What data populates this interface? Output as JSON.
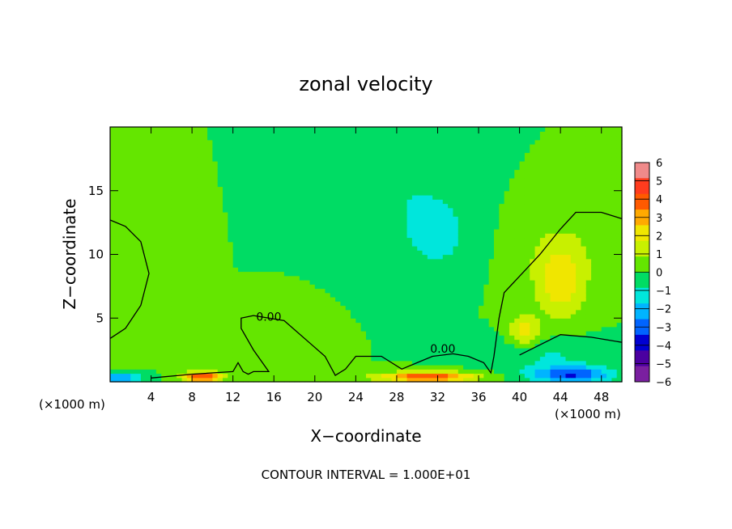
{
  "chart_data": {
    "type": "heatmap",
    "title": "zonal velocity",
    "xlabel": "X−coordinate",
    "ylabel": "Z−coordinate",
    "x_unit_left": "(×1000 m)",
    "x_unit_right": "(×1000 m)",
    "xlim": [
      0,
      50
    ],
    "ylim": [
      0,
      20
    ],
    "x_ticks": [
      4,
      8,
      12,
      16,
      20,
      24,
      28,
      32,
      36,
      40,
      44,
      48
    ],
    "y_ticks": [
      5,
      10,
      15
    ],
    "contour_label": "0.00",
    "footer": "CONTOUR INTERVAL = 1.000E+01",
    "colorbar": {
      "levels": [
        6,
        5,
        4,
        3,
        2,
        1,
        0,
        -1,
        -2,
        -3,
        -4,
        -5,
        -6
      ],
      "labels": [
        "6",
        "5",
        "4",
        "3",
        "2",
        "1",
        "0",
        "−1",
        "−2",
        "−3",
        "−4",
        "−5",
        "−6"
      ],
      "colors": [
        "#f08a8a",
        "#ff3c1e",
        "#ff5a00",
        "#ffaa00",
        "#f0e600",
        "#c8f000",
        "#64e600",
        "#00dc64",
        "#00e6dc",
        "#00b4ff",
        "#0064ff",
        "#0000d2",
        "#4b00a0",
        "#7a1fa0"
      ]
    },
    "background_level": -0.5,
    "features": [
      {
        "kind": "blob",
        "x": 1.5,
        "z": 8.5,
        "rx": 3.5,
        "rz": 4.5,
        "value": 0.4
      },
      {
        "kind": "blob",
        "x": 32,
        "z": 11.5,
        "rx": 4,
        "rz": 3.5,
        "value": -1.9
      },
      {
        "kind": "blob",
        "x": 29,
        "z": 15,
        "rx": 6,
        "rz": 5,
        "value": -1.3
      },
      {
        "kind": "blob",
        "x": 44,
        "z": 7.5,
        "rx": 3,
        "rz": 3.5,
        "value": 1.7
      },
      {
        "kind": "blob",
        "x": 40.5,
        "z": 4,
        "rx": 1.8,
        "rz": 1.5,
        "value": 2.1
      },
      {
        "kind": "blob",
        "x": 44,
        "z": 10,
        "rx": 5,
        "rz": 4,
        "value": 0.6
      },
      {
        "kind": "blob",
        "x": 18,
        "z": 2.5,
        "rx": 3,
        "rz": 2.5,
        "value": 0.5
      },
      {
        "kind": "blob",
        "x": 9,
        "z": 0.4,
        "rx": 2.5,
        "rz": 0.5,
        "value": 4.5
      },
      {
        "kind": "blob",
        "x": 31,
        "z": 0.4,
        "rx": 6,
        "rz": 0.5,
        "value": 4.5
      },
      {
        "kind": "blob",
        "x": 45,
        "z": 0.6,
        "rx": 5,
        "rz": 0.8,
        "value": -4.5
      },
      {
        "kind": "blob",
        "x": 43,
        "z": 2.2,
        "rx": 7,
        "rz": 1.6,
        "value": -1.6
      },
      {
        "kind": "blob",
        "x": 1,
        "z": 0.3,
        "rx": 2.5,
        "rz": 0.4,
        "value": -4
      }
    ],
    "zero_contours": [
      [
        [
          0,
          12.7
        ],
        [
          1.5,
          12.2
        ],
        [
          3,
          11
        ],
        [
          3.8,
          8.5
        ],
        [
          3,
          6
        ],
        [
          1.5,
          4.2
        ],
        [
          0,
          3.4
        ]
      ],
      [
        [
          4,
          0.3
        ],
        [
          8,
          0.6
        ],
        [
          12,
          0.8
        ],
        [
          12.5,
          1.5
        ],
        [
          13,
          0.8
        ],
        [
          13.5,
          0.6
        ],
        [
          14,
          0.8
        ],
        [
          15.5,
          0.8
        ],
        [
          14,
          2.5
        ],
        [
          12.8,
          4.2
        ],
        [
          12.8,
          5
        ],
        [
          14,
          5.2
        ],
        [
          17,
          4.8
        ],
        [
          21,
          2
        ],
        [
          22,
          0.5
        ],
        [
          23,
          1
        ],
        [
          24,
          2
        ],
        [
          26.5,
          2
        ],
        [
          28.5,
          1
        ],
        [
          30,
          1.5
        ],
        [
          31.5,
          2
        ],
        [
          33.5,
          2.2
        ],
        [
          35,
          2
        ],
        [
          36.5,
          1.5
        ],
        [
          37.2,
          0.7
        ],
        [
          37.5,
          2
        ],
        [
          38,
          5
        ],
        [
          38.5,
          7
        ],
        [
          42,
          10
        ],
        [
          44,
          12
        ],
        [
          45.5,
          13.3
        ],
        [
          48,
          13.3
        ],
        [
          50,
          12.8
        ]
      ],
      [
        [
          40,
          2.1
        ],
        [
          44,
          3.7
        ],
        [
          47,
          3.5
        ],
        [
          50,
          3.1
        ]
      ]
    ],
    "contour_label_positions": [
      [
        15.5,
        4.8
      ],
      [
        32.5,
        2.3
      ]
    ]
  }
}
